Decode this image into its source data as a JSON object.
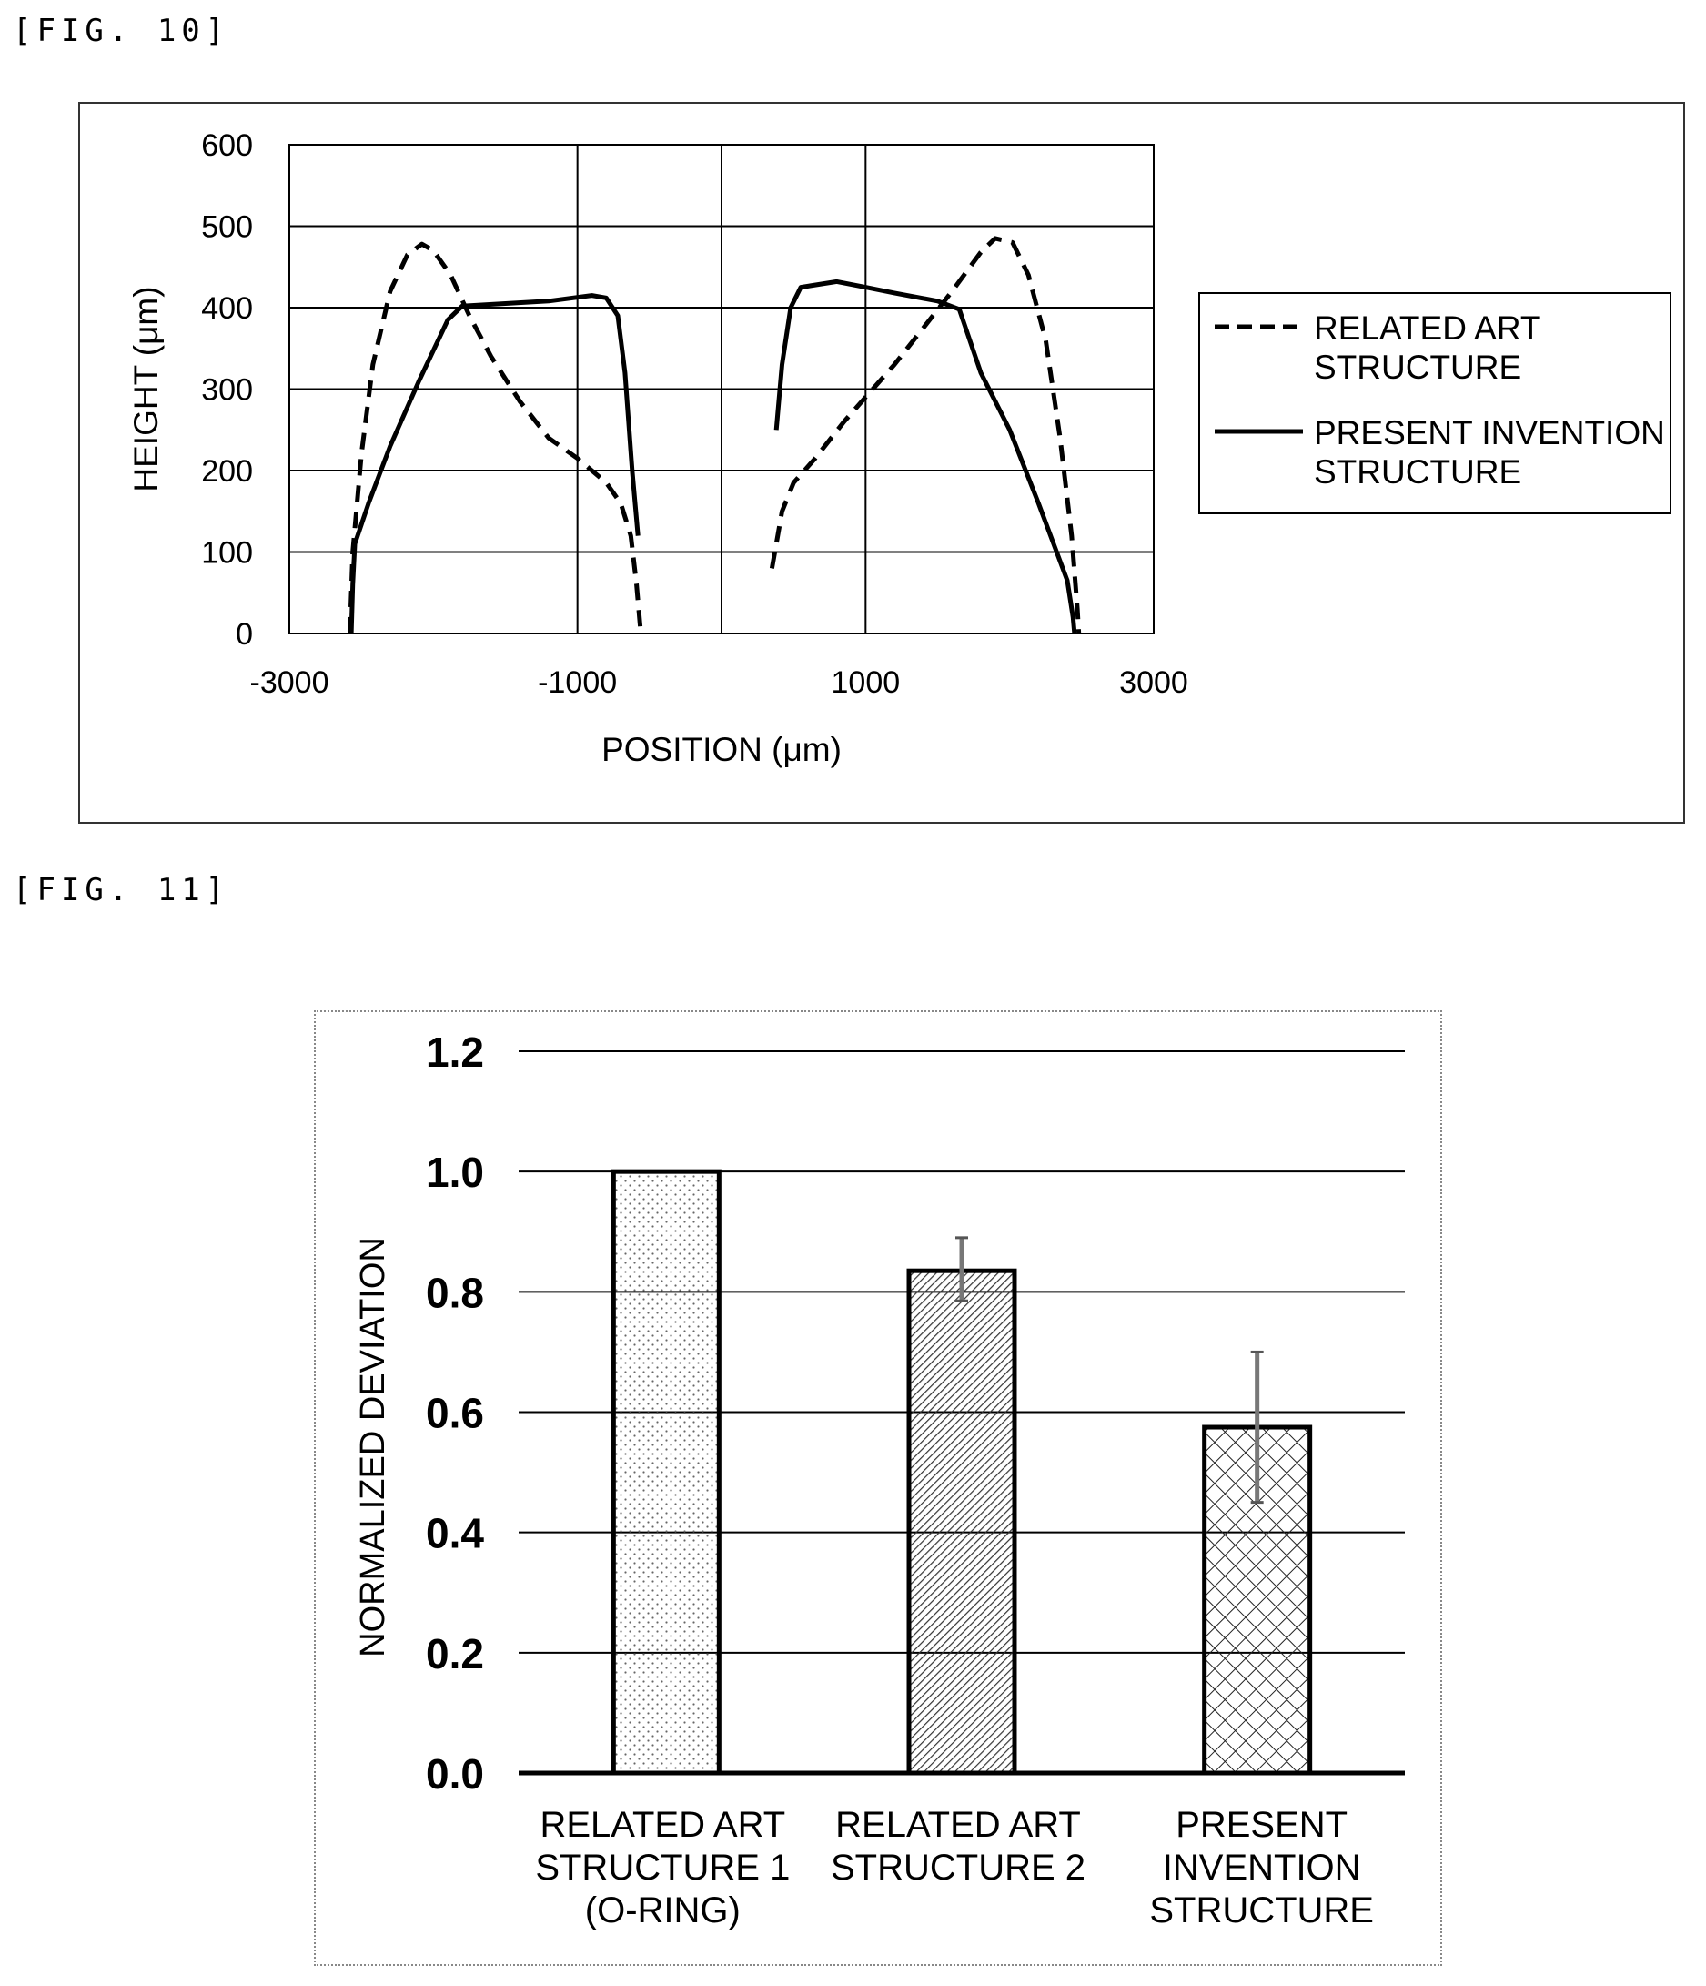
{
  "figures": {
    "fig10_label": "[FIG. 10]",
    "fig11_label": "[FIG. 11]"
  },
  "chart_data": [
    {
      "type": "line",
      "xlabel": "POSITION (μm)",
      "ylabel": "HEIGHT (μm)",
      "xlim": [
        -3000,
        3000
      ],
      "ylim": [
        0,
        600
      ],
      "x_ticks": [
        "-3000",
        "-1000",
        "1000",
        "3000"
      ],
      "x_tick_values": [
        -3000,
        -1000,
        1000,
        3000
      ],
      "y_ticks": [
        "0",
        "100",
        "200",
        "300",
        "400",
        "500",
        "600"
      ],
      "y_tick_values": [
        0,
        100,
        200,
        300,
        400,
        500,
        600
      ],
      "vertical_gridlines": [
        -1000,
        0,
        1000
      ],
      "grid": true,
      "legend_position": "right",
      "series": [
        {
          "name": "RELATED ART STRUCTURE",
          "legend_lines": [
            "RELATED ART",
            "STRUCTURE"
          ],
          "style": "dashed",
          "segments": [
            [
              [
                -2580,
                0
              ],
              [
                -2560,
                100
              ],
              [
                -2500,
                220
              ],
              [
                -2420,
                330
              ],
              [
                -2300,
                420
              ],
              [
                -2180,
                465
              ],
              [
                -2080,
                478
              ],
              [
                -2000,
                470
              ],
              [
                -1880,
                440
              ],
              [
                -1750,
                390
              ],
              [
                -1600,
                340
              ],
              [
                -1400,
                285
              ],
              [
                -1200,
                240
              ],
              [
                -1000,
                215
              ],
              [
                -800,
                185
              ],
              [
                -700,
                160
              ],
              [
                -630,
                120
              ],
              [
                -590,
                60
              ],
              [
                -560,
                0
              ]
            ],
            [
              [
                350,
                80
              ],
              [
                380,
                110
              ],
              [
                420,
                150
              ],
              [
                500,
                185
              ],
              [
                650,
                215
              ],
              [
                850,
                260
              ],
              [
                1000,
                290
              ],
              [
                1200,
                330
              ],
              [
                1400,
                375
              ],
              [
                1600,
                420
              ],
              [
                1800,
                468
              ],
              [
                1900,
                485
              ],
              [
                2020,
                480
              ],
              [
                2130,
                440
              ],
              [
                2250,
                360
              ],
              [
                2350,
                240
              ],
              [
                2430,
                120
              ],
              [
                2470,
                30
              ],
              [
                2480,
                0
              ]
            ]
          ]
        },
        {
          "name": "PRESENT INVENTION STRUCTURE",
          "legend_lines": [
            "PRESENT INVENTION",
            "STRUCTURE"
          ],
          "style": "solid",
          "segments": [
            [
              [
                -2570,
                0
              ],
              [
                -2560,
                60
              ],
              [
                -2545,
                110
              ],
              [
                -2450,
                160
              ],
              [
                -2300,
                230
              ],
              [
                -2100,
                310
              ],
              [
                -1900,
                385
              ],
              [
                -1800,
                402
              ],
              [
                -1500,
                405
              ],
              [
                -1200,
                408
              ],
              [
                -900,
                415
              ],
              [
                -800,
                412
              ],
              [
                -720,
                390
              ],
              [
                -670,
                320
              ],
              [
                -620,
                200
              ],
              [
                -580,
                120
              ]
            ],
            [
              [
                380,
                250
              ],
              [
                420,
                330
              ],
              [
                480,
                400
              ],
              [
                550,
                425
              ],
              [
                800,
                432
              ],
              [
                1000,
                425
              ],
              [
                1200,
                418
              ],
              [
                1500,
                408
              ],
              [
                1650,
                398
              ],
              [
                1800,
                320
              ],
              [
                2000,
                250
              ],
              [
                2200,
                160
              ],
              [
                2400,
                65
              ],
              [
                2440,
                20
              ],
              [
                2450,
                0
              ]
            ]
          ]
        }
      ]
    },
    {
      "type": "bar",
      "ylabel": "NORMALIZED DEVIATION",
      "ylim": [
        0.0,
        1.2
      ],
      "y_ticks": [
        "0.0",
        "0.2",
        "0.4",
        "0.6",
        "0.8",
        "1.0",
        "1.2"
      ],
      "y_tick_values": [
        0.0,
        0.2,
        0.4,
        0.6,
        0.8,
        1.0,
        1.2
      ],
      "grid": true,
      "categories": [
        [
          "RELATED ART",
          "STRUCTURE 1",
          "(O-RING)"
        ],
        [
          "RELATED ART",
          "STRUCTURE 2"
        ],
        [
          "PRESENT",
          "INVENTION",
          "STRUCTURE"
        ]
      ],
      "values": [
        1.0,
        0.835,
        0.575
      ],
      "error_low": [
        0.0,
        0.785,
        0.45
      ],
      "error_high": [
        0.0,
        0.89,
        0.7
      ],
      "fill_patterns": [
        "dots",
        "diagonal-hatch",
        "crosshatch"
      ]
    }
  ]
}
